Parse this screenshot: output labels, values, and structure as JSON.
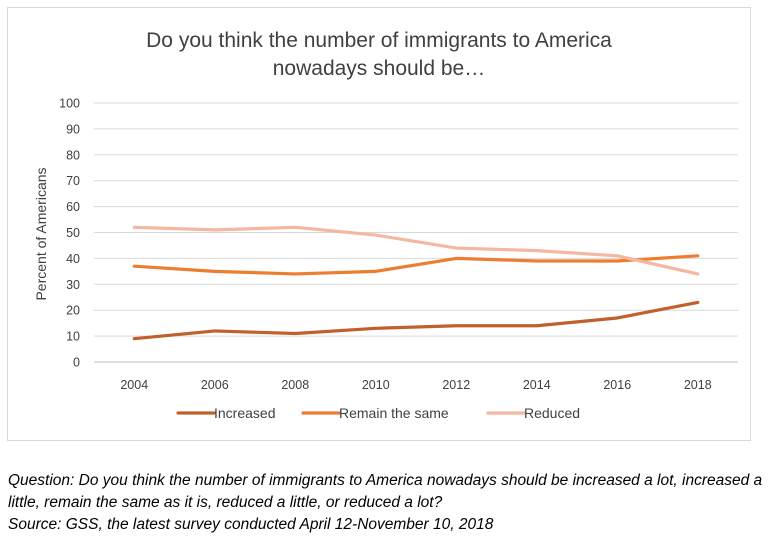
{
  "chart_data": {
    "type": "line",
    "title_lines": [
      "Do you think the number of immigrants to America",
      "nowadays should be…"
    ],
    "xlabel": "",
    "ylabel": "Percent of Americans",
    "ylim": [
      0,
      100
    ],
    "yticks": [
      0,
      10,
      20,
      30,
      40,
      50,
      60,
      70,
      80,
      90,
      100
    ],
    "x": [
      2004,
      2006,
      2008,
      2010,
      2012,
      2014,
      2016,
      2018
    ],
    "series": [
      {
        "name": "Increased",
        "color": "#c0612b",
        "values": [
          9,
          12,
          11,
          13,
          14,
          14,
          17,
          23
        ]
      },
      {
        "name": "Remain the same",
        "color": "#ed7d31",
        "values": [
          37,
          35,
          34,
          35,
          40,
          39,
          39,
          41
        ]
      },
      {
        "name": "Reduced",
        "color": "#f4b7a0",
        "values": [
          52,
          51,
          52,
          49,
          44,
          43,
          41,
          34
        ]
      }
    ],
    "grid": true,
    "legend_position": "bottom"
  },
  "caption": {
    "question": "Question: Do you think the number of immigrants to America nowadays should be increased a lot, increased a little, remain the same as it is, reduced a little, or reduced a lot?",
    "source": "Source: GSS, the latest survey conducted April 12-November 10, 2018"
  }
}
